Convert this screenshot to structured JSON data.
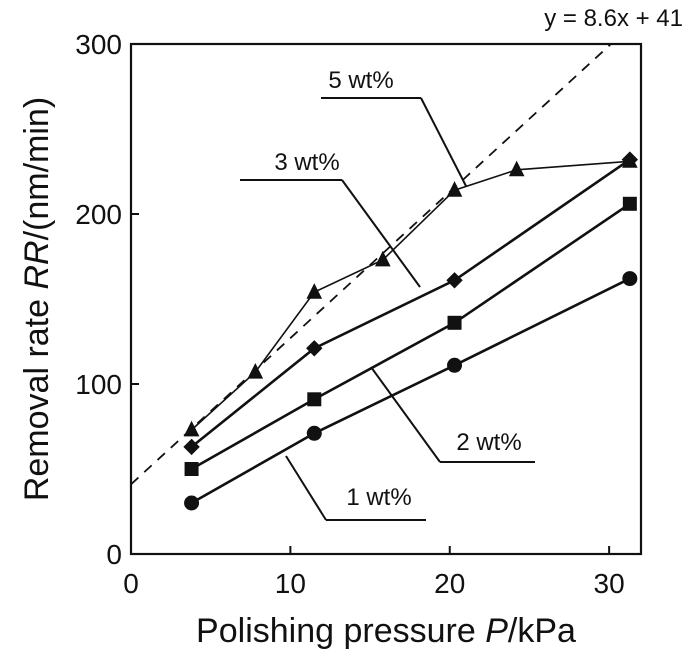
{
  "chart_data": {
    "type": "line",
    "xlabel": {
      "prefix": "Polishing pressure ",
      "italic": "P",
      "suffix": "/kPa"
    },
    "ylabel": {
      "prefix": "Removal rate ",
      "italic": "RR",
      "suffix": "/(nm/min)"
    },
    "xlim": [
      0,
      32
    ],
    "ylim": [
      0,
      300
    ],
    "x_ticks": [
      0,
      10,
      20,
      30
    ],
    "y_ticks": [
      0,
      100,
      200,
      300
    ],
    "grid": false,
    "fit_line": {
      "label": "y = 8.6x + 41",
      "slope": 8.6,
      "intercept": 41,
      "style": "dashed"
    },
    "series": [
      {
        "name": "1 wt%",
        "marker": "circle",
        "points": [
          {
            "x": 3.8,
            "y": 30
          },
          {
            "x": 11.5,
            "y": 71
          },
          {
            "x": 20.3,
            "y": 111
          },
          {
            "x": 31.3,
            "y": 162
          }
        ]
      },
      {
        "name": "2 wt%",
        "marker": "square",
        "points": [
          {
            "x": 3.8,
            "y": 50
          },
          {
            "x": 11.5,
            "y": 91
          },
          {
            "x": 20.3,
            "y": 136
          },
          {
            "x": 31.3,
            "y": 206
          }
        ]
      },
      {
        "name": "3 wt%",
        "marker": "diamond",
        "points": [
          {
            "x": 3.8,
            "y": 63
          },
          {
            "x": 11.5,
            "y": 121
          },
          {
            "x": 20.3,
            "y": 161
          },
          {
            "x": 31.3,
            "y": 232
          }
        ]
      },
      {
        "name": "5 wt%",
        "marker": "triangle",
        "points": [
          {
            "x": 3.8,
            "y": 73
          },
          {
            "x": 7.8,
            "y": 107
          },
          {
            "x": 11.5,
            "y": 154
          },
          {
            "x": 15.8,
            "y": 173
          },
          {
            "x": 20.3,
            "y": 214
          },
          {
            "x": 24.2,
            "y": 226
          },
          {
            "x": 31.3,
            "y": 231
          }
        ]
      }
    ]
  }
}
